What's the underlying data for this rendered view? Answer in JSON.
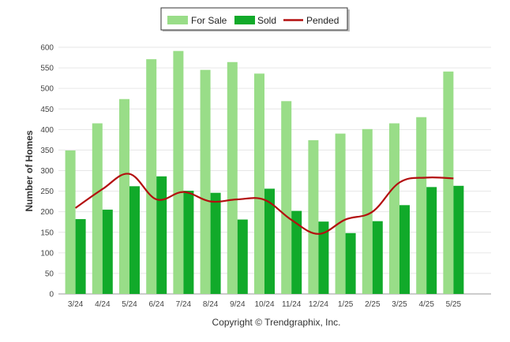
{
  "chart_data": {
    "type": "bar",
    "ylabel": "Number of Homes",
    "ylim": [
      0,
      600
    ],
    "yticks": [
      0,
      50,
      100,
      150,
      200,
      250,
      300,
      350,
      400,
      450,
      500,
      550,
      600
    ],
    "categories": [
      "3/24",
      "4/24",
      "5/24",
      "6/24",
      "7/24",
      "8/24",
      "9/24",
      "10/24",
      "11/24",
      "12/24",
      "1/25",
      "2/25",
      "3/25",
      "4/25",
      "5/25"
    ],
    "series": [
      {
        "name": "For Sale",
        "kind": "bar",
        "color": "#99dd88",
        "values": [
          349,
          415,
          474,
          571,
          591,
          545,
          564,
          536,
          469,
          374,
          390,
          401,
          415,
          430,
          541
        ]
      },
      {
        "name": "Sold",
        "kind": "bar",
        "color": "#11aa2a",
        "values": [
          182,
          205,
          262,
          286,
          251,
          246,
          181,
          256,
          202,
          176,
          148,
          177,
          216,
          260,
          263
        ]
      },
      {
        "name": "Pended",
        "kind": "line",
        "color": "#b30f0f",
        "values": [
          209,
          255,
          292,
          230,
          248,
          225,
          230,
          229,
          180,
          146,
          181,
          200,
          271,
          283,
          281
        ]
      }
    ],
    "legend_position": "top-center",
    "grid": true
  },
  "footer": {
    "copyright": "Copyright © Trendgraphix, Inc."
  }
}
